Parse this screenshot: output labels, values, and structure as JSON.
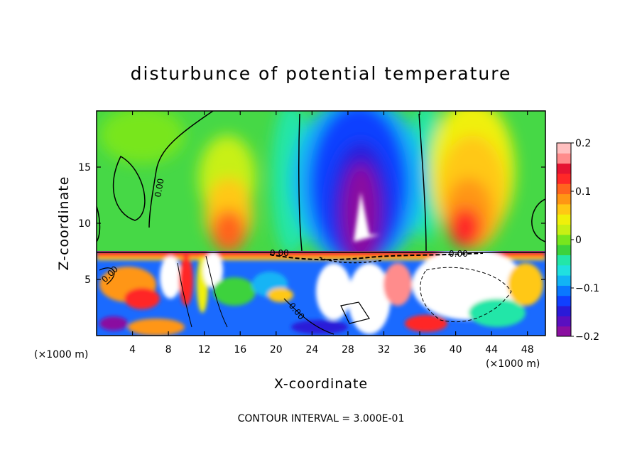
{
  "chart_data": {
    "type": "heatmap",
    "title": "disturbunce of potential temperature",
    "xlabel": "X-coordinate",
    "ylabel": "Z-coordinate",
    "x_unit": "(×1000 m)",
    "xlim": [
      0,
      50
    ],
    "ylim": [
      0,
      20
    ],
    "x_ticks": [
      4,
      8,
      12,
      16,
      20,
      24,
      28,
      32,
      36,
      40,
      44,
      48
    ],
    "x_tick_labels": [
      "4",
      "8",
      "12",
      "16",
      "20",
      "24",
      "28",
      "32",
      "36",
      "40",
      "44",
      "48"
    ],
    "y_ticks": [
      5,
      10,
      15
    ],
    "y_tick_labels": [
      "5",
      "10",
      "15"
    ],
    "colorbar": {
      "range": [
        -0.2,
        0.2
      ],
      "ticks": [
        0.2,
        0.1,
        0,
        -0.1,
        -0.2
      ],
      "tick_labels": [
        "0.2",
        "0.1",
        "0",
        "−0.1",
        "−0.2"
      ],
      "colors": [
        "#8a0fa0",
        "#5a0fc0",
        "#2a1ad8",
        "#1040ff",
        "#0a78ff",
        "#12b4f5",
        "#20e0e0",
        "#23e6a8",
        "#3cd23c",
        "#78e61e",
        "#c8f014",
        "#f0f00a",
        "#ffc814",
        "#ff9614",
        "#ff641e",
        "#ff2828",
        "#e61432",
        "#ff8c8c",
        "#ffc0c0"
      ]
    },
    "contour_labels": [
      "0.00",
      "0.00",
      "0.00",
      "0.00",
      "0.00"
    ],
    "footer": "CONTOUR INTERVAL = 3.000E-01"
  }
}
